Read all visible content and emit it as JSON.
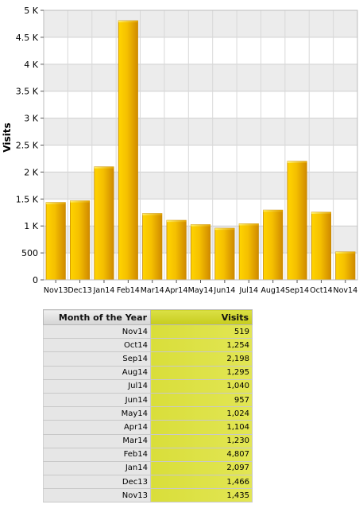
{
  "chart_data": {
    "type": "bar",
    "ylabel": "Visits",
    "ylim": [
      0,
      5000
    ],
    "y_ticks": [
      0,
      500,
      1000,
      1500,
      2000,
      2500,
      3000,
      3500,
      4000,
      4500,
      5000
    ],
    "y_tick_labels": [
      "0",
      "500",
      "1 K",
      "1.5 K",
      "2 K",
      "2.5 K",
      "3 K",
      "3.5 K",
      "4 K",
      "4.5 K",
      "5 K"
    ],
    "categories": [
      "Nov13",
      "Dec13",
      "Jan14",
      "Feb14",
      "Mar14",
      "Apr14",
      "May14",
      "Jun14",
      "Jul14",
      "Aug14",
      "Sep14",
      "Oct14",
      "Nov14"
    ],
    "values": [
      1435,
      1466,
      2097,
      4807,
      1230,
      1104,
      1024,
      957,
      1040,
      1295,
      2198,
      1254,
      519
    ],
    "grid": true,
    "bar_color": "#f0b400"
  },
  "table": {
    "headers": [
      "Month of the Year",
      "Visits"
    ],
    "rows": [
      [
        "Nov14",
        "519"
      ],
      [
        "Oct14",
        "1,254"
      ],
      [
        "Sep14",
        "2,198"
      ],
      [
        "Aug14",
        "1,295"
      ],
      [
        "Jul14",
        "1,040"
      ],
      [
        "Jun14",
        "957"
      ],
      [
        "May14",
        "1,024"
      ],
      [
        "Apr14",
        "1,104"
      ],
      [
        "Mar14",
        "1,230"
      ],
      [
        "Feb14",
        "4,807"
      ],
      [
        "Jan14",
        "2,097"
      ],
      [
        "Dec13",
        "1,466"
      ],
      [
        "Nov13",
        "1,435"
      ]
    ]
  }
}
